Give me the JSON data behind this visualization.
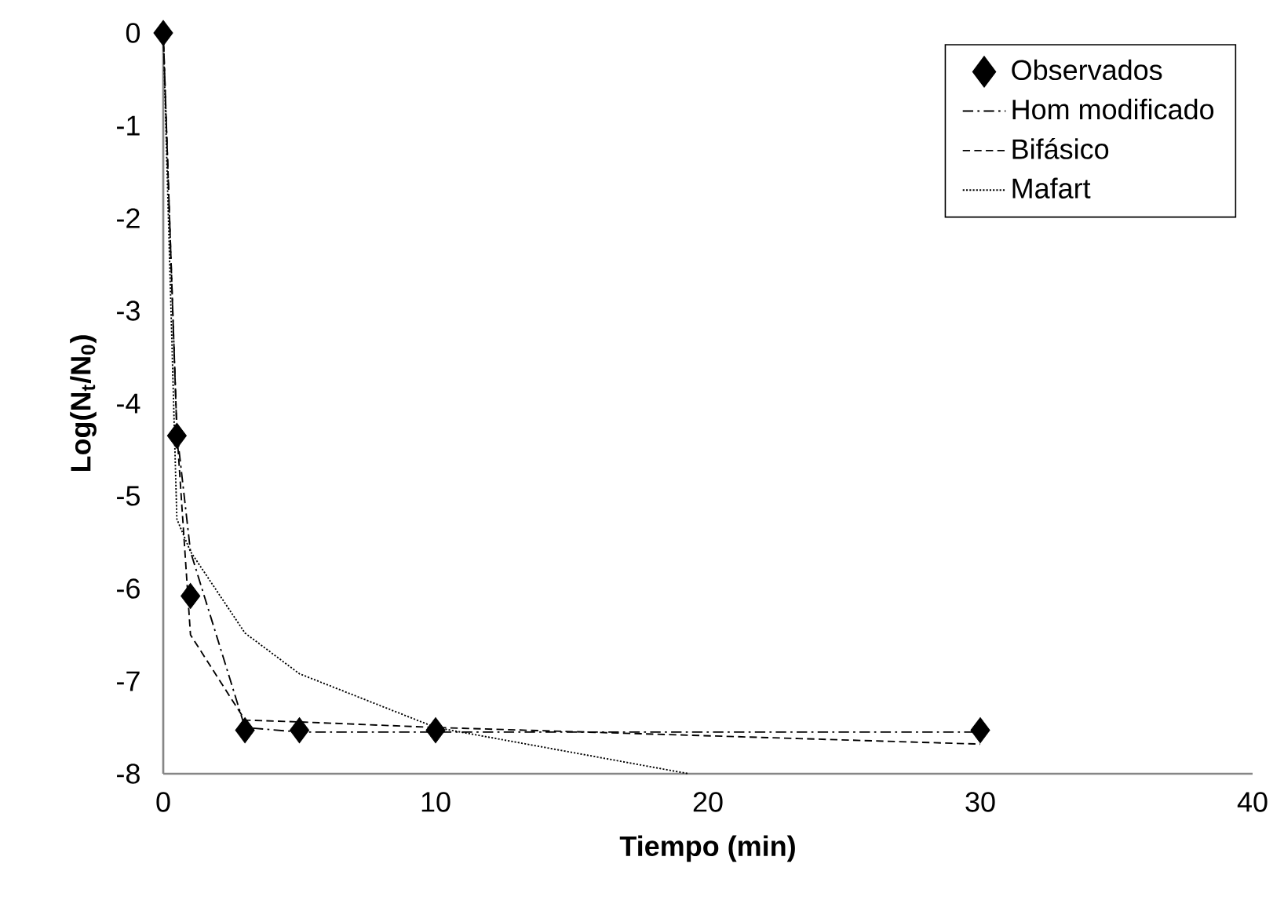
{
  "chart_data": {
    "type": "line",
    "xlabel": "Tiempo (min)",
    "ylabel": "Log(N$_{t}$/N$_{0}$)",
    "xlim": [
      0,
      40
    ],
    "ylim": [
      -8,
      0
    ],
    "xticks": [
      0,
      10,
      20,
      30,
      40
    ],
    "yticks": [
      -8,
      -7,
      -6,
      -5,
      -4,
      -3,
      -2,
      -1,
      0
    ],
    "grid": false,
    "legend": "top right",
    "series": [
      {
        "name": "Observados",
        "type": "scatter",
        "marker": "diamond",
        "color": "#000000",
        "x": [
          0,
          0.5,
          1,
          3,
          5,
          10,
          30
        ],
        "values": [
          0,
          -4.35,
          -6.08,
          -7.53,
          -7.53,
          -7.53,
          -7.53
        ]
      },
      {
        "name": "Hom modificado",
        "line_style": "dashdot",
        "color": "#000000",
        "x": [
          0,
          0.5,
          1,
          3,
          5,
          10,
          30
        ],
        "values": [
          0,
          -4.3,
          -5.6,
          -7.5,
          -7.55,
          -7.55,
          -7.55
        ]
      },
      {
        "name": "Bifásico",
        "line_style": "dashed",
        "color": "#000000",
        "x": [
          0,
          0.5,
          1,
          3,
          5,
          10,
          30
        ],
        "values": [
          0,
          -4.3,
          -6.5,
          -7.42,
          -7.44,
          -7.5,
          -7.68
        ]
      },
      {
        "name": "Mafart",
        "line_style": "dotted",
        "color": "#000000",
        "x": [
          0,
          0.5,
          1,
          3,
          5,
          10,
          19.3
        ],
        "values": [
          0,
          -5.25,
          -5.6,
          -6.48,
          -6.92,
          -7.5,
          -8
        ]
      }
    ]
  }
}
